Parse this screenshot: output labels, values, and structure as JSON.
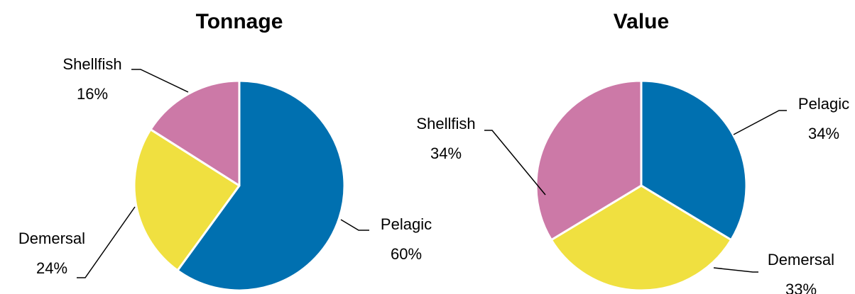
{
  "chart_data": [
    {
      "type": "pie",
      "title": "Tonnage",
      "categories": [
        "Pelagic",
        "Demersal",
        "Shellfish"
      ],
      "values": [
        60,
        24,
        16
      ],
      "value_labels": [
        "60%",
        "24%",
        "16%"
      ],
      "colors": [
        "#0070b0",
        "#f0e040",
        "#cc79a7"
      ]
    },
    {
      "type": "pie",
      "title": "Value",
      "categories": [
        "Pelagic",
        "Demersal",
        "Shellfish"
      ],
      "values": [
        34,
        33,
        34
      ],
      "value_labels": [
        "34%",
        "33%",
        "34%"
      ],
      "colors": [
        "#0070b0",
        "#f0e040",
        "#cc79a7"
      ]
    }
  ]
}
